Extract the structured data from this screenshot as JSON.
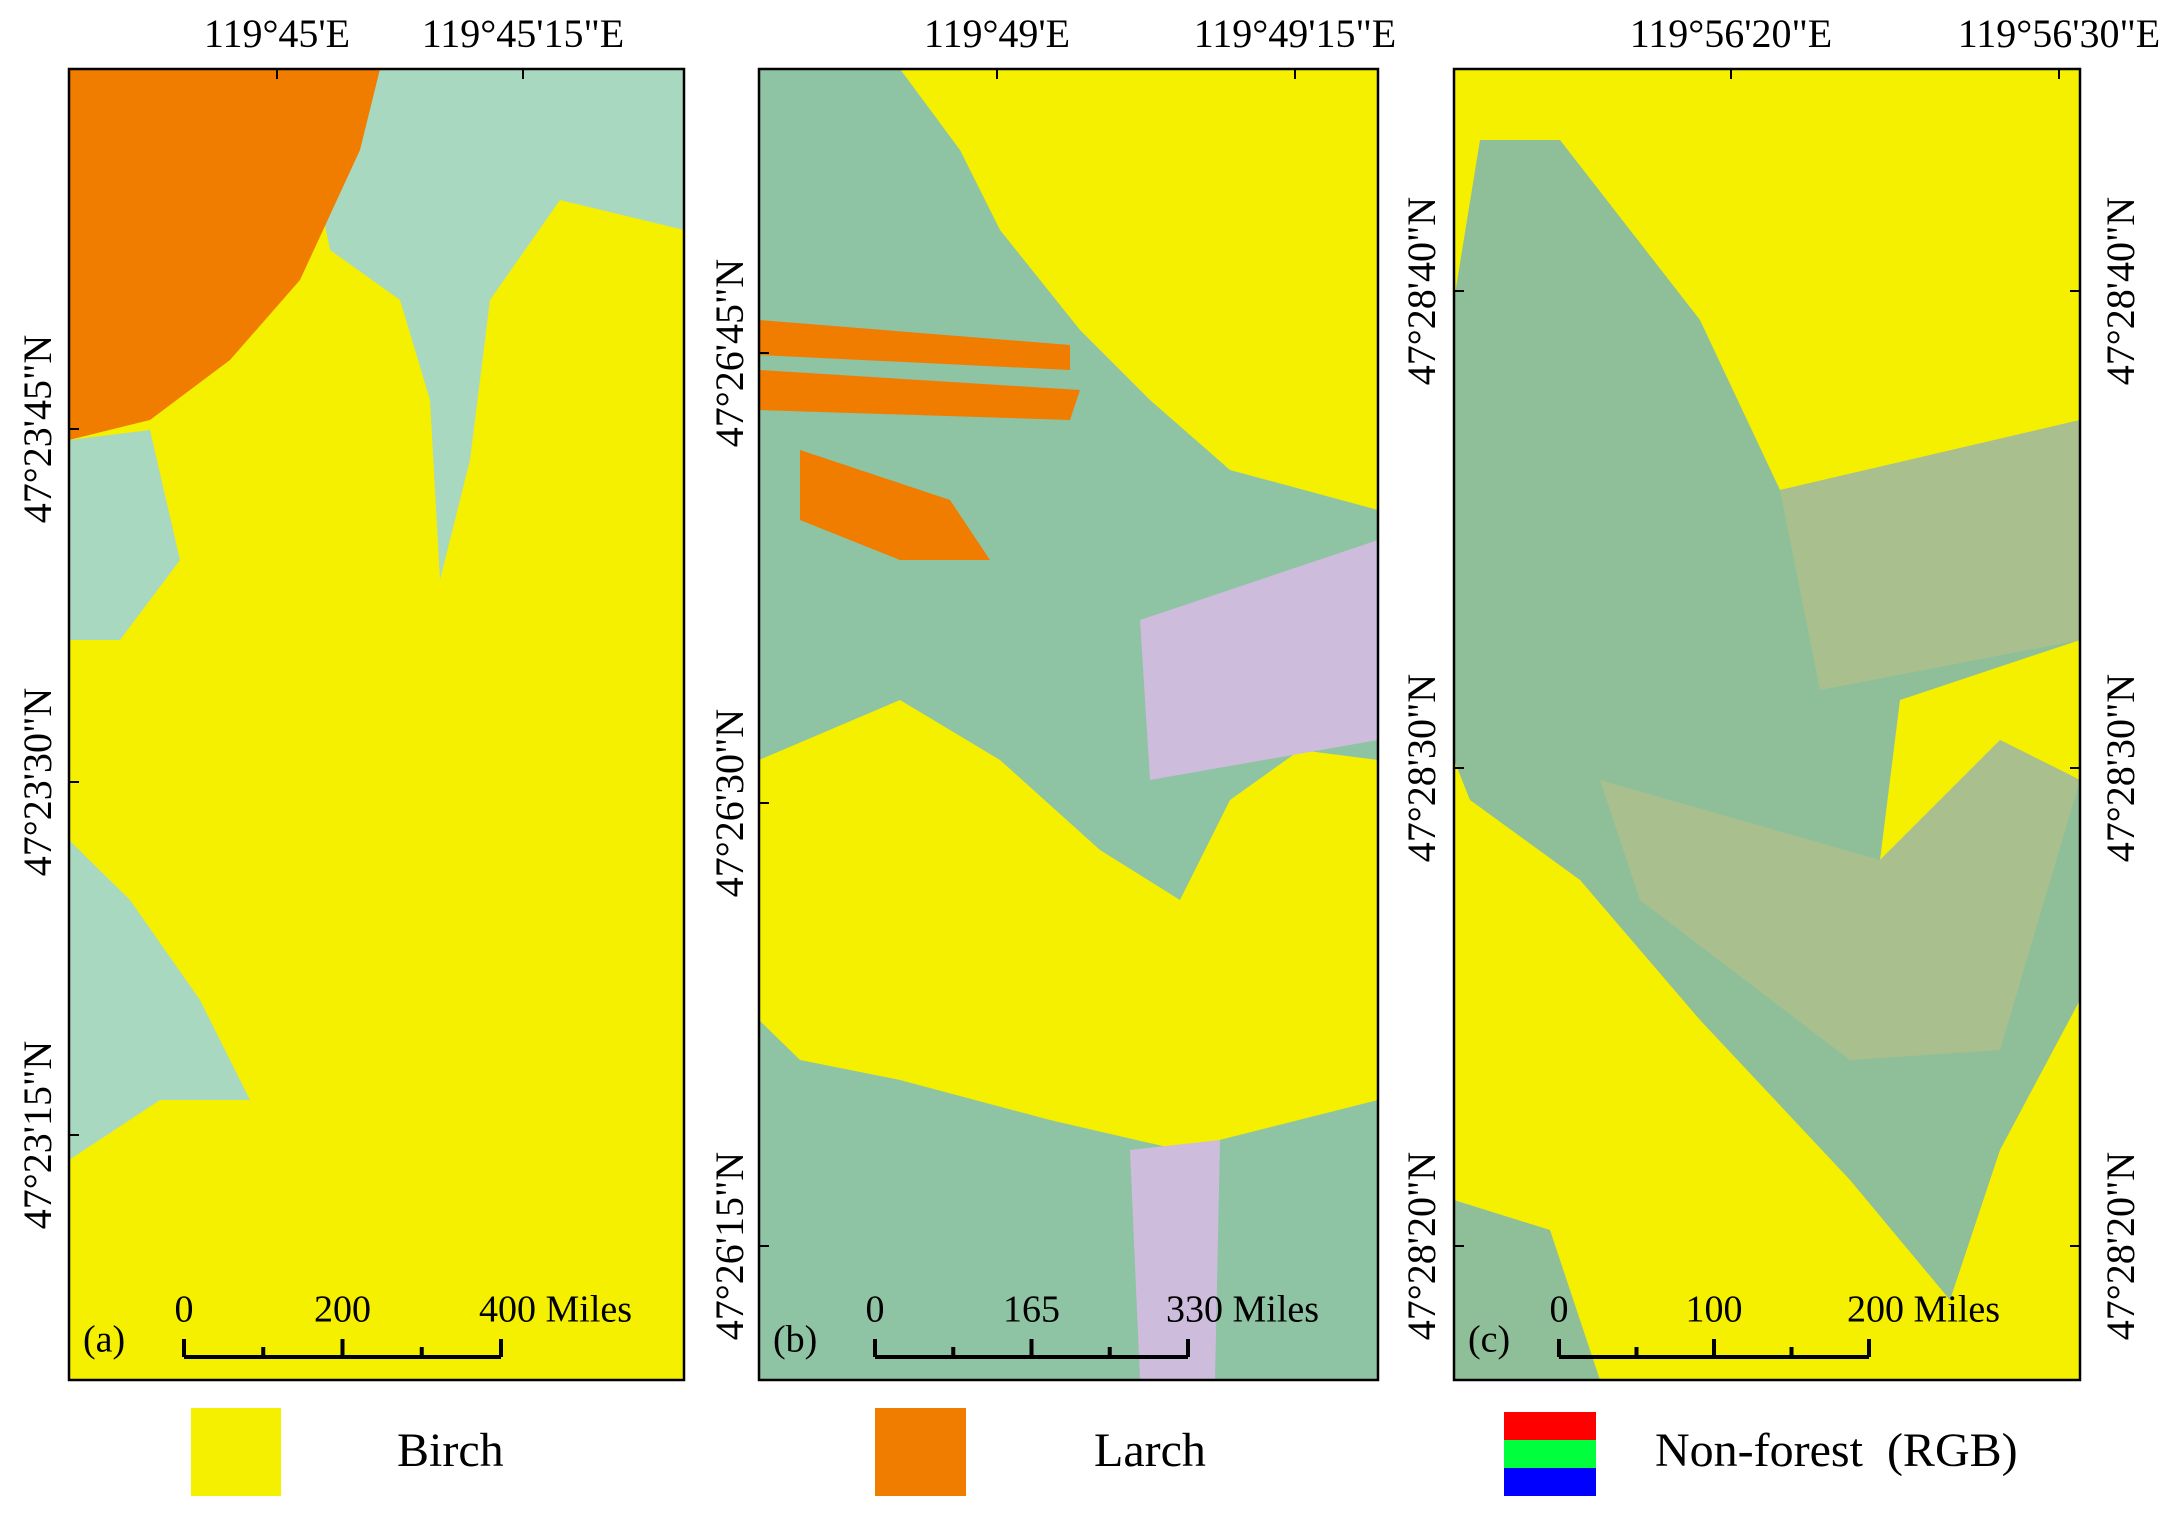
{
  "panels": [
    {
      "label": "(a)",
      "top_ticks": [
        "119°45'E",
        "119°45'15\"E"
      ],
      "left_ticks": [
        "47°23'45\"N",
        "47°23'30\"N",
        "47°23'15\"N"
      ],
      "scale_bar": [
        "0",
        "200",
        "400 Miles"
      ]
    },
    {
      "label": "(b)",
      "top_ticks": [
        "119°49'E",
        "119°49'15\"E"
      ],
      "left_ticks": [
        "47°26'45\"N",
        "47°26'30\"N",
        "47°26'15\"N"
      ],
      "scale_bar": [
        "0",
        "165",
        "330 Miles"
      ]
    },
    {
      "label": "(c)",
      "top_ticks": [
        "119°56'20\"E",
        "119°56'30\"E"
      ],
      "left_ticks": [
        "47°28'40\"N",
        "47°28'30\"N",
        "47°28'20\"N"
      ],
      "right_ticks": [
        "47°28'40\"N",
        "47°28'30\"N",
        "47°28'20\"N"
      ],
      "scale_bar": [
        "0",
        "100",
        "200 Miles"
      ]
    }
  ],
  "legend": [
    {
      "label": "Birch"
    },
    {
      "label": "Larch"
    },
    {
      "label": "Non-forest  (RGB)"
    }
  ]
}
